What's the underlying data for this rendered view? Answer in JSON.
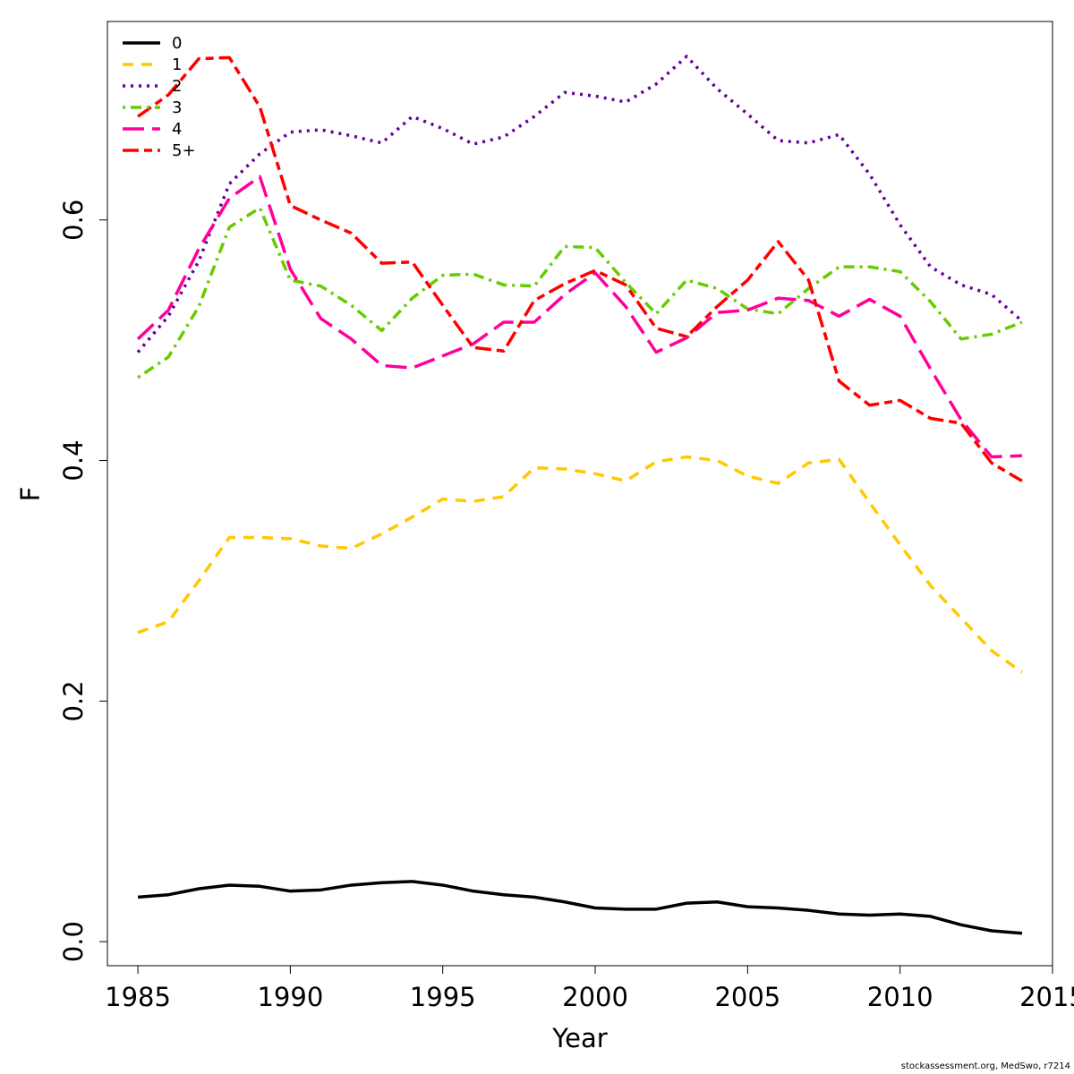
{
  "chart_data": {
    "type": "line",
    "title": "",
    "xlabel": "Year",
    "ylabel": "F",
    "xlim": [
      1984,
      2015
    ],
    "ylim": [
      -0.02,
      0.765
    ],
    "xticks": [
      1985,
      1990,
      1995,
      2000,
      2005,
      2010,
      2015
    ],
    "yticks": [
      0.0,
      0.2,
      0.4,
      0.6
    ],
    "ytick_labels": [
      "0.0",
      "0.2",
      "0.4",
      "0.6"
    ],
    "grid": false,
    "legend_position": "top-left",
    "x": [
      1985,
      1986,
      1987,
      1988,
      1989,
      1990,
      1991,
      1992,
      1993,
      1994,
      1995,
      1996,
      1997,
      1998,
      1999,
      2000,
      2001,
      2002,
      2003,
      2004,
      2005,
      2006,
      2007,
      2008,
      2009,
      2010,
      2011,
      2012,
      2013,
      2014
    ],
    "series": [
      {
        "name": "0",
        "color": "#000000",
        "dash": "solid",
        "values": [
          0.037,
          0.039,
          0.044,
          0.047,
          0.046,
          0.042,
          0.043,
          0.047,
          0.049,
          0.05,
          0.047,
          0.042,
          0.039,
          0.037,
          0.033,
          0.028,
          0.027,
          0.027,
          0.032,
          0.033,
          0.029,
          0.028,
          0.026,
          0.023,
          0.022,
          0.023,
          0.021,
          0.014,
          0.009,
          0.007
        ]
      },
      {
        "name": "1",
        "color": "#FFC800",
        "dash": "dashed",
        "values": [
          0.257,
          0.266,
          0.3,
          0.336,
          0.336,
          0.335,
          0.329,
          0.327,
          0.339,
          0.353,
          0.368,
          0.366,
          0.37,
          0.394,
          0.393,
          0.389,
          0.383,
          0.399,
          0.403,
          0.4,
          0.387,
          0.381,
          0.398,
          0.401,
          0.365,
          0.33,
          0.296,
          0.269,
          0.242,
          0.224
        ]
      },
      {
        "name": "2",
        "color": "#660099",
        "dash": "dotted",
        "values": [
          0.49,
          0.52,
          0.566,
          0.63,
          0.655,
          0.673,
          0.675,
          0.67,
          0.664,
          0.686,
          0.676,
          0.663,
          0.669,
          0.686,
          0.706,
          0.703,
          0.698,
          0.713,
          0.736,
          0.709,
          0.688,
          0.666,
          0.664,
          0.671,
          0.638,
          0.596,
          0.561,
          0.546,
          0.538,
          0.516
        ]
      },
      {
        "name": "3",
        "color": "#66CC00",
        "dash": "dotdash",
        "values": [
          0.469,
          0.486,
          0.528,
          0.594,
          0.61,
          0.55,
          0.545,
          0.529,
          0.508,
          0.535,
          0.554,
          0.555,
          0.546,
          0.545,
          0.578,
          0.577,
          0.548,
          0.522,
          0.55,
          0.543,
          0.526,
          0.522,
          0.543,
          0.561,
          0.561,
          0.557,
          0.532,
          0.501,
          0.505,
          0.515
        ]
      },
      {
        "name": "4",
        "color": "#FF0099",
        "dash": "longdash",
        "values": [
          0.501,
          0.525,
          0.576,
          0.618,
          0.636,
          0.559,
          0.518,
          0.501,
          0.479,
          0.477,
          0.487,
          0.497,
          0.515,
          0.515,
          0.538,
          0.556,
          0.528,
          0.49,
          0.502,
          0.523,
          0.525,
          0.535,
          0.533,
          0.52,
          0.534,
          0.52,
          0.476,
          0.434,
          0.403,
          0.404
        ]
      },
      {
        "name": "5+",
        "color": "#FF0000",
        "dash": "twodash",
        "values": [
          0.686,
          0.704,
          0.734,
          0.735,
          0.694,
          0.612,
          0.6,
          0.589,
          0.564,
          0.565,
          0.529,
          0.494,
          0.491,
          0.533,
          0.547,
          0.558,
          0.546,
          0.51,
          0.503,
          0.528,
          0.55,
          0.582,
          0.55,
          0.466,
          0.446,
          0.45,
          0.435,
          0.431,
          0.398,
          0.383
        ]
      }
    ]
  },
  "footer": "stockassessment.org, MedSwo, r7214"
}
